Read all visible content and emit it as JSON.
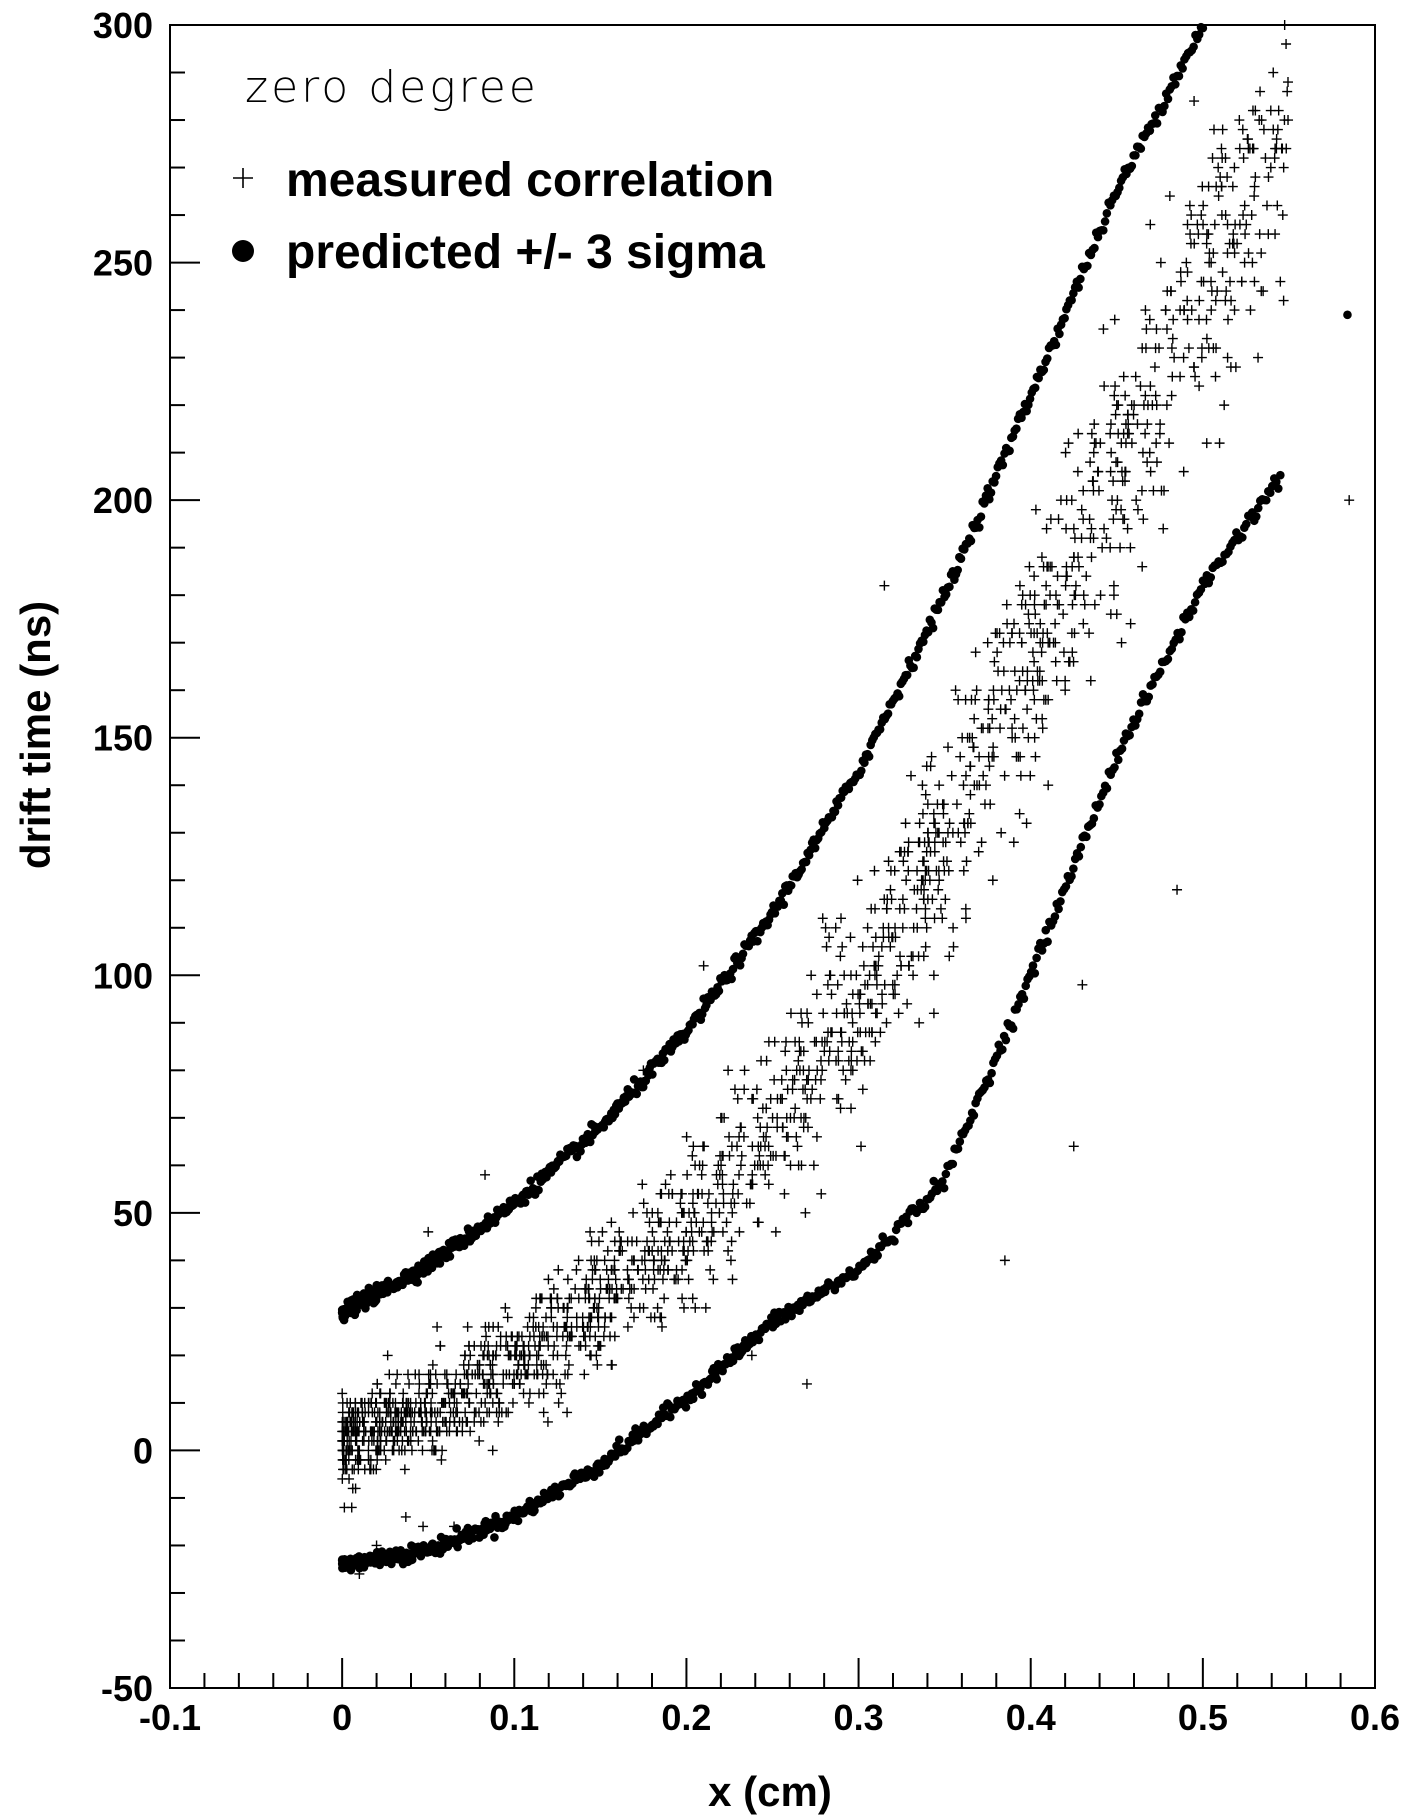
{
  "chart_data": {
    "type": "scatter",
    "annotation": "zero degree",
    "xlabel": "x (cm)",
    "ylabel": "drift time (ns)",
    "xlim": [
      -0.1,
      0.6
    ],
    "ylim": [
      -50,
      300
    ],
    "x_ticks": [
      "-0.1",
      "0",
      "0.1",
      "0.2",
      "0.3",
      "0.4",
      "0.5",
      "0.6"
    ],
    "x_tick_values": [
      -0.1,
      0,
      0.1,
      0.2,
      0.3,
      0.4,
      0.5,
      0.6
    ],
    "y_ticks": [
      "-50",
      "0",
      "50",
      "100",
      "150",
      "200",
      "250",
      "300"
    ],
    "y_tick_values": [
      -50,
      0,
      50,
      100,
      150,
      200,
      250,
      300
    ],
    "grid": false,
    "legend_position": "top-left",
    "series": [
      {
        "name": "measured correlation",
        "marker": "plus",
        "trend_points": [
          [
            0.0,
            2
          ],
          [
            0.05,
            8
          ],
          [
            0.1,
            17
          ],
          [
            0.15,
            30
          ],
          [
            0.2,
            47
          ],
          [
            0.25,
            68
          ],
          [
            0.3,
            95
          ],
          [
            0.35,
            130
          ],
          [
            0.4,
            165
          ],
          [
            0.45,
            205
          ],
          [
            0.5,
            245
          ],
          [
            0.53,
            265
          ]
        ],
        "x_range": [
          0.0,
          0.585
        ],
        "approx_count": 1800,
        "outliers": [
          [
            0.315,
            182
          ],
          [
            0.21,
            102
          ],
          [
            0.175,
            80
          ],
          [
            0.083,
            58
          ],
          [
            0.05,
            46
          ],
          [
            0.27,
            14
          ],
          [
            0.385,
            40
          ],
          [
            0.425,
            64
          ],
          [
            0.485,
            118
          ],
          [
            0.43,
            98
          ],
          [
            0.585,
            200
          ],
          [
            0.545,
            246
          ],
          [
            0.01,
            -26
          ],
          [
            0.02,
            -20
          ],
          [
            0.037,
            -14
          ],
          [
            0.047,
            -16
          ],
          [
            0.065,
            -16
          ],
          [
            0.238,
            20
          ]
        ]
      },
      {
        "name": "predicted +/- 3 sigma",
        "marker": "filled-circle",
        "upper_band": [
          [
            0.0,
            29
          ],
          [
            0.05,
            39
          ],
          [
            0.1,
            52
          ],
          [
            0.15,
            68
          ],
          [
            0.2,
            88
          ],
          [
            0.25,
            113
          ],
          [
            0.3,
            143
          ],
          [
            0.35,
            180
          ],
          [
            0.4,
            222
          ],
          [
            0.45,
            265
          ],
          [
            0.5,
            300
          ]
        ],
        "lower_band": [
          [
            0.0,
            -24
          ],
          [
            0.05,
            -21
          ],
          [
            0.1,
            -14
          ],
          [
            0.15,
            -3
          ],
          [
            0.2,
            11
          ],
          [
            0.25,
            27
          ],
          [
            0.3,
            38
          ],
          [
            0.35,
            57
          ],
          [
            0.4,
            100
          ],
          [
            0.45,
            146
          ],
          [
            0.5,
            182
          ],
          [
            0.545,
            205
          ]
        ],
        "extra_points": [
          [
            0.584,
            239
          ]
        ]
      }
    ]
  }
}
